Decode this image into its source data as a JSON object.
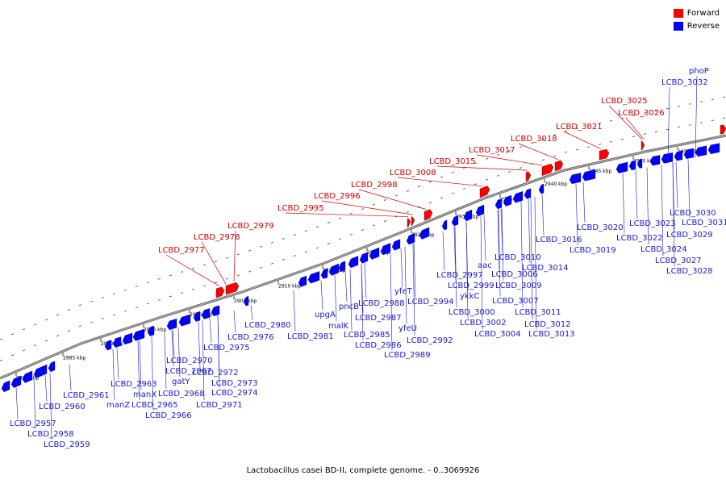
{
  "legend": [
    {
      "label": "Forward",
      "color": "#ff0000"
    },
    {
      "label": "Reverse",
      "color": "#0000ff"
    }
  ],
  "caption": "Lactobacillus casei BD-II, complete genome. - 0..3069926",
  "colors": {
    "forward": "#ff0000",
    "reverse": "#0000ff",
    "backbone": "#808080"
  },
  "kbp_ticks": [
    "2880 kbp",
    "2885 kbp",
    "2890 kbp",
    "2895 kbp",
    "2900 kbp",
    "2905 kbp",
    "2910 kbp",
    "2915 kbp",
    "2920 kbp",
    "2925 kbp",
    "2930 kbp",
    "2935 kbp",
    "2940 kbp",
    "2945 kbp",
    "2950 kbp",
    "2955 kbp"
  ],
  "forward_labels": [
    "LCBD_2977",
    "LCBD_2978",
    "LCBD_2979",
    "LCBD_2995",
    "LCBD_2996",
    "LCBD_2998",
    "LCBD_3008",
    "LCBD_3015",
    "LCBD_3017",
    "LCBD_3018",
    "LCBD_3021",
    "LCBD_3025",
    "LCBD_3026"
  ],
  "reverse_labels": [
    "LCBD_2957",
    "LCBD_2958",
    "LCBD_2959",
    "LCBD_2960",
    "LCBD_2961",
    "manZ",
    "LCBD_2963",
    "manX",
    "LCBD_2965",
    "LCBD_2966",
    "LCBD_2967",
    "LCBD_2968",
    "gatY",
    "LCBD_2970",
    "LCBD_2971",
    "LCBD_2972",
    "LCBD_2973",
    "LCBD_2974",
    "LCBD_2975",
    "LCBD_2976",
    "LCBD_2980",
    "LCBD_2981",
    "upgA",
    "malK",
    "pncB",
    "LCBD_2985",
    "LCBD_2986",
    "LCBD_2987",
    "LCBD_2988",
    "LCBD_2989",
    "yfeT",
    "yfeU",
    "LCBD_2992",
    "LCBD_2994",
    "LCBD_2997",
    "LCBD_2999",
    "LCBD_3000",
    "aac",
    "ykkC",
    "LCBD_3002",
    "LCBD_3004",
    "LCBD_3006",
    "LCBD_3007",
    "LCBD_3009",
    "LCBD_3010",
    "LCBD_3011",
    "LCBD_3012",
    "LCBD_3013",
    "LCBD_3014",
    "LCBD_3016",
    "LCBD_3019",
    "LCBD_3020",
    "LCBD_3022",
    "LCBD_3023",
    "LCBD_3024",
    "LCBD_3027",
    "LCBD_3028",
    "LCBD_3029",
    "LCBD_3030",
    "LCBD_3031",
    "phoP",
    "LCBD_3032"
  ]
}
